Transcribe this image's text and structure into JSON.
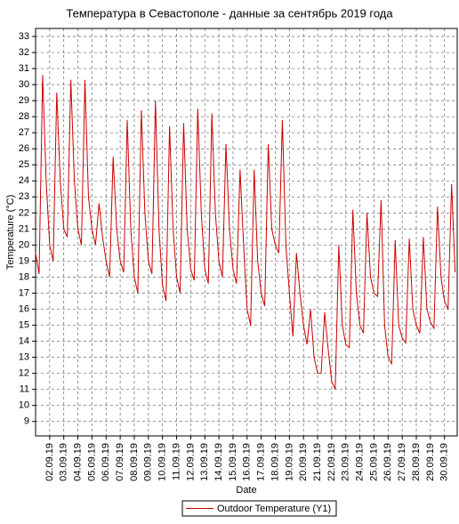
{
  "chart_data": {
    "type": "line",
    "title": "Температура в Севастополе - данные за сентябрь 2019 года",
    "x_label": "Date",
    "y_label": "Temperature (°C)",
    "x": [
      1,
      1.25,
      1.5,
      1.75,
      2,
      2.25,
      2.5,
      2.75,
      3,
      3.25,
      3.5,
      3.75,
      4,
      4.25,
      4.5,
      4.75,
      5,
      5.25,
      5.5,
      5.75,
      6,
      6.25,
      6.5,
      6.75,
      7,
      7.25,
      7.5,
      7.75,
      8,
      8.25,
      8.5,
      8.75,
      9,
      9.25,
      9.5,
      9.75,
      10,
      10.25,
      10.5,
      10.75,
      11,
      11.25,
      11.5,
      11.75,
      12,
      12.25,
      12.5,
      12.75,
      13,
      13.25,
      13.5,
      13.75,
      14,
      14.25,
      14.5,
      14.75,
      15,
      15.25,
      15.5,
      15.75,
      16,
      16.25,
      16.5,
      16.75,
      17,
      17.25,
      17.5,
      17.75,
      18,
      18.25,
      18.5,
      18.75,
      19,
      19.25,
      19.5,
      19.75,
      20,
      20.25,
      20.5,
      20.75,
      21,
      21.25,
      21.5,
      21.75,
      22,
      22.25,
      22.5,
      22.75,
      23,
      23.25,
      23.5,
      23.75,
      24,
      24.25,
      24.5,
      24.75,
      25,
      25.25,
      25.5,
      25.75,
      26,
      26.25,
      26.5,
      26.75,
      27,
      27.25,
      27.5,
      27.75,
      28,
      28.25,
      28.5,
      28.75,
      29,
      29.25,
      29.5,
      29.75,
      30,
      30.25,
      30.5,
      30.75
    ],
    "series": [
      {
        "name": "Outdoor Temperature (Y1)",
        "color": "#cc0000",
        "values": [
          19.5,
          18.2,
          30.6,
          24,
          20,
          19,
          29.5,
          24,
          21,
          20.5,
          30.3,
          24,
          21,
          20,
          30.3,
          23,
          21,
          20,
          22.6,
          20.5,
          19,
          18,
          25.5,
          21,
          19,
          18.3,
          27.8,
          21,
          18,
          17,
          28.4,
          22,
          19,
          18.2,
          29,
          21,
          17.5,
          16.5,
          27.4,
          21,
          18,
          17,
          27.6,
          21,
          18.5,
          17.8,
          28.5,
          22,
          18.5,
          17.6,
          28.2,
          22,
          19,
          18,
          26.3,
          21,
          18.5,
          17.6,
          24.7,
          20,
          16,
          15,
          24.7,
          19,
          17,
          16.2,
          26.3,
          21,
          20,
          19.5,
          27.8,
          20,
          17,
          14.3,
          19.5,
          17,
          15,
          13.8,
          16,
          13,
          12,
          12,
          15.8,
          13.5,
          11.5,
          11,
          20,
          15,
          13.8,
          13.6,
          22.2,
          17,
          15,
          14.5,
          22,
          18,
          17,
          16.8,
          22.8,
          15,
          13,
          12.6,
          20.3,
          15,
          14.2,
          13.9,
          20.4,
          16,
          15,
          14.5,
          20.5,
          16,
          15.2,
          14.8,
          22.4,
          18,
          16.5,
          16,
          23.8,
          18.3
        ]
      }
    ],
    "xlim": [
      1,
      30.9
    ],
    "xticks": [
      {
        "value": 2,
        "label": "02.09.19"
      },
      {
        "value": 3,
        "label": "03.09.19"
      },
      {
        "value": 4,
        "label": "04.09.19"
      },
      {
        "value": 5,
        "label": "05.09.19"
      },
      {
        "value": 6,
        "label": "06.09.19"
      },
      {
        "value": 7,
        "label": "07.09.19"
      },
      {
        "value": 8,
        "label": "08.09.19"
      },
      {
        "value": 9,
        "label": "09.09.19"
      },
      {
        "value": 10,
        "label": "10.09.19"
      },
      {
        "value": 11,
        "label": "11.09.19"
      },
      {
        "value": 12,
        "label": "12.09.19"
      },
      {
        "value": 13,
        "label": "13.09.19"
      },
      {
        "value": 14,
        "label": "14.09.19"
      },
      {
        "value": 15,
        "label": "15.09.19"
      },
      {
        "value": 16,
        "label": "16.09.19"
      },
      {
        "value": 17,
        "label": "17.09.19"
      },
      {
        "value": 18,
        "label": "18.09.19"
      },
      {
        "value": 19,
        "label": "19.09.19"
      },
      {
        "value": 20,
        "label": "20.09.19"
      },
      {
        "value": 21,
        "label": "21.09.19"
      },
      {
        "value": 22,
        "label": "22.09.19"
      },
      {
        "value": 23,
        "label": "23.09.19"
      },
      {
        "value": 24,
        "label": "24.09.19"
      },
      {
        "value": 25,
        "label": "25.09.19"
      },
      {
        "value": 26,
        "label": "26.09.19"
      },
      {
        "value": 27,
        "label": "27.09.19"
      },
      {
        "value": 28,
        "label": "28.09.19"
      },
      {
        "value": 29,
        "label": "29.09.19"
      },
      {
        "value": 30,
        "label": "30.09.19"
      }
    ],
    "ylim": [
      8.1,
      33.5
    ],
    "yticks": [
      9,
      10,
      11,
      12,
      13,
      14,
      15,
      16,
      17,
      18,
      19,
      20,
      21,
      22,
      23,
      24,
      25,
      26,
      27,
      28,
      29,
      30,
      31,
      32,
      33
    ],
    "grid": true,
    "legend": "bottom"
  }
}
